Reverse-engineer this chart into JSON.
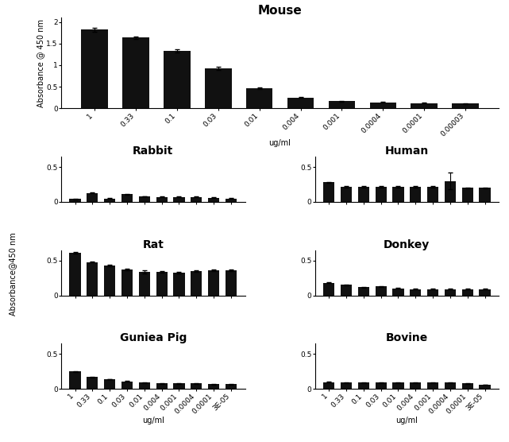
{
  "mouse_labels": [
    "1",
    "0.33",
    "0.1",
    "0.03",
    "0.01",
    "0.004",
    "0.001",
    "0.0004",
    "0.0001",
    "0.00003"
  ],
  "mouse_values": [
    1.82,
    1.64,
    1.33,
    0.93,
    0.47,
    0.25,
    0.17,
    0.14,
    0.12,
    0.11
  ],
  "mouse_errors": [
    0.05,
    0.03,
    0.04,
    0.04,
    0.02,
    0.01,
    0.01,
    0.01,
    0.01,
    0.01
  ],
  "mouse_title": "Mouse",
  "mouse_ylabel": "Absorbance @ 450 nm",
  "mouse_xlabel": "ug/ml",
  "mouse_ylim": [
    0,
    2.1
  ],
  "mouse_yticks": [
    0,
    0.5,
    1.0,
    1.5,
    2.0
  ],
  "mouse_ytick_labels": [
    "0",
    "0.5",
    "1",
    "1.5",
    "2"
  ],
  "sub_labels": [
    "1",
    "0.33",
    "0.1",
    "0.03",
    "0.01",
    "0.004",
    "0.001",
    "0.0004",
    "0.0001",
    "3E-05"
  ],
  "rabbit_values": [
    0.04,
    0.13,
    0.05,
    0.11,
    0.08,
    0.07,
    0.07,
    0.07,
    0.06,
    0.05
  ],
  "rabbit_errors": [
    0.005,
    0.005,
    0.005,
    0.005,
    0.005,
    0.005,
    0.005,
    0.005,
    0.005,
    0.005
  ],
  "human_values": [
    0.28,
    0.22,
    0.22,
    0.22,
    0.22,
    0.22,
    0.22,
    0.3,
    0.2,
    0.2
  ],
  "human_errors": [
    0.01,
    0.01,
    0.01,
    0.01,
    0.01,
    0.01,
    0.01,
    0.12,
    0.01,
    0.01
  ],
  "rat_values": [
    0.61,
    0.48,
    0.43,
    0.37,
    0.34,
    0.34,
    0.33,
    0.35,
    0.36,
    0.36
  ],
  "rat_errors": [
    0.01,
    0.01,
    0.01,
    0.01,
    0.02,
    0.01,
    0.01,
    0.01,
    0.01,
    0.01
  ],
  "donkey_values": [
    0.18,
    0.15,
    0.12,
    0.13,
    0.1,
    0.09,
    0.09,
    0.09,
    0.09,
    0.09
  ],
  "donkey_errors": [
    0.005,
    0.005,
    0.005,
    0.005,
    0.005,
    0.005,
    0.005,
    0.005,
    0.005,
    0.005
  ],
  "guineapig_values": [
    0.25,
    0.17,
    0.14,
    0.11,
    0.09,
    0.08,
    0.08,
    0.08,
    0.07,
    0.07
  ],
  "guineapig_errors": [
    0.005,
    0.005,
    0.005,
    0.005,
    0.005,
    0.005,
    0.005,
    0.005,
    0.005,
    0.005
  ],
  "bovine_values": [
    0.1,
    0.09,
    0.09,
    0.09,
    0.09,
    0.09,
    0.09,
    0.09,
    0.08,
    0.06
  ],
  "bovine_errors": [
    0.005,
    0.005,
    0.005,
    0.005,
    0.005,
    0.005,
    0.005,
    0.005,
    0.005,
    0.005
  ],
  "sub_ylim": [
    0,
    0.65
  ],
  "sub_yticks": [
    0,
    0.5
  ],
  "sub_ytick_labels": [
    "0",
    "0.5"
  ],
  "sub_ylabel": "Absorbance@450 nm",
  "sub_xlabel": "ug/ml",
  "bar_color": "#111111",
  "bg_color": "#ffffff",
  "mouse_title_fontsize": 11,
  "sub_title_fontsize": 10,
  "label_fontsize": 7,
  "tick_fontsize": 6.5
}
